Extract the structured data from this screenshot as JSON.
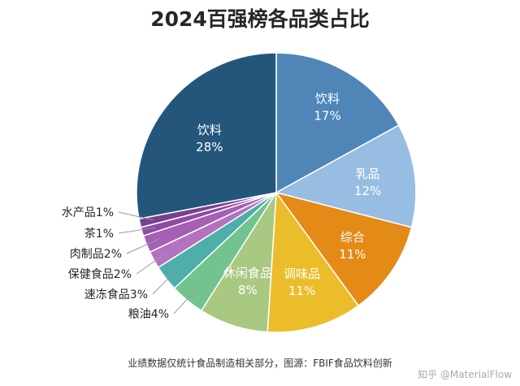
{
  "colors": {
    "饮料_dark": "#23567a",
    "饮料_light": "#4f86b7",
    "乳品": "#98bde2",
    "综合": "#e48a17",
    "调味品": "#ecbd2b",
    "休闲食品": "#a9c881",
    "粮油": "#73c38e",
    "速冻食品": "#4eaeaa",
    "保健食品": "#b272c0",
    "肉制品": "#a55fb3",
    "茶": "#8e4aa3",
    "水产品": "#7a3f91"
  },
  "chart_data": {
    "type": "pie",
    "title": "2024百强榜各品类占比",
    "slices": [
      {
        "label": "饮料",
        "value": 17,
        "value_label": "17%",
        "color_key": "饮料_light"
      },
      {
        "label": "乳品",
        "value": 12,
        "value_label": "12%",
        "color_key": "乳品"
      },
      {
        "label": "综合",
        "value": 11,
        "value_label": "11%",
        "color_key": "综合"
      },
      {
        "label": "调味品",
        "value": 11,
        "value_label": "11%",
        "color_key": "调味品"
      },
      {
        "label": "休闲食品",
        "value": 8,
        "value_label": "8%",
        "color_key": "休闲食品"
      },
      {
        "label": "粮油",
        "value": 4,
        "value_label": "4%",
        "color_key": "粮油"
      },
      {
        "label": "速冻食品",
        "value": 3,
        "value_label": "3%",
        "color_key": "速冻食品"
      },
      {
        "label": "保健食品",
        "value": 2,
        "value_label": "2%",
        "color_key": "保健食品"
      },
      {
        "label": "肉制品",
        "value": 2,
        "value_label": "2%",
        "color_key": "肉制品"
      },
      {
        "label": "茶",
        "value": 1,
        "value_label": "1%",
        "color_key": "茶"
      },
      {
        "label": "水产品",
        "value": 1,
        "value_label": "1%",
        "color_key": "水产品"
      },
      {
        "label": "饮料",
        "value": 28,
        "value_label": "28%",
        "color_key": "饮料_dark"
      }
    ]
  },
  "footer": {
    "note": "业绩数据仅统计食品制造相关部分，图源：FBIF食品饮料创新",
    "watermark": "知乎 @MaterialFlow"
  }
}
